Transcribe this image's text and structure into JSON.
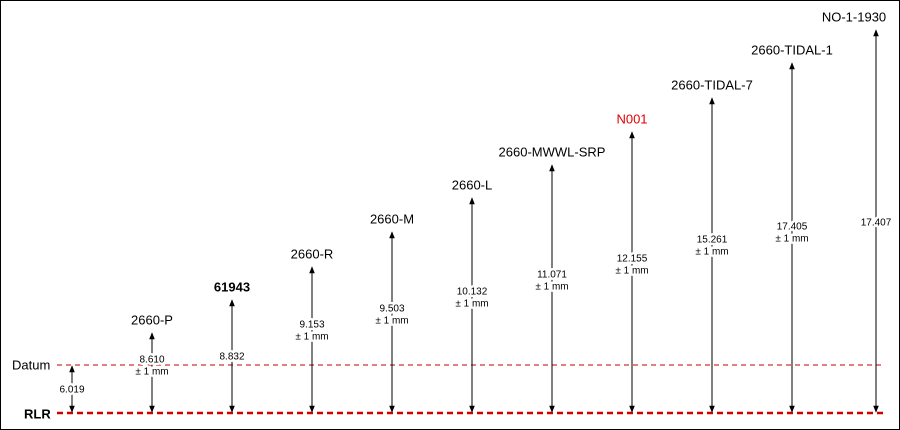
{
  "datum": {
    "label": "Datum",
    "value": "6.019"
  },
  "reference": {
    "label": "RLR"
  },
  "benchmarks": [
    {
      "name": "2660-P",
      "value": "8.610",
      "tolerance": "± 1 mm"
    },
    {
      "name": "61943",
      "value": "8.832",
      "bold": true
    },
    {
      "name": "2660-R",
      "value": "9.153",
      "tolerance": "± 1 mm"
    },
    {
      "name": "2660-M",
      "value": "9.503",
      "tolerance": "± 1 mm"
    },
    {
      "name": "2660-L",
      "value": "10.132",
      "tolerance": "± 1 mm"
    },
    {
      "name": "2660-MWWL-SRP",
      "value": "11.071",
      "tolerance": "± 1 mm"
    },
    {
      "name": "N001",
      "value": "12.155",
      "tolerance": "± 1 mm",
      "color": "#e00000"
    },
    {
      "name": "2660-TIDAL-7",
      "value": "15.261",
      "tolerance": "± 1 mm"
    },
    {
      "name": "2660-TIDAL-1",
      "value": "17.405",
      "tolerance": "± 1 mm"
    },
    {
      "name": "NO-1-1930",
      "value": "17.407"
    }
  ]
}
